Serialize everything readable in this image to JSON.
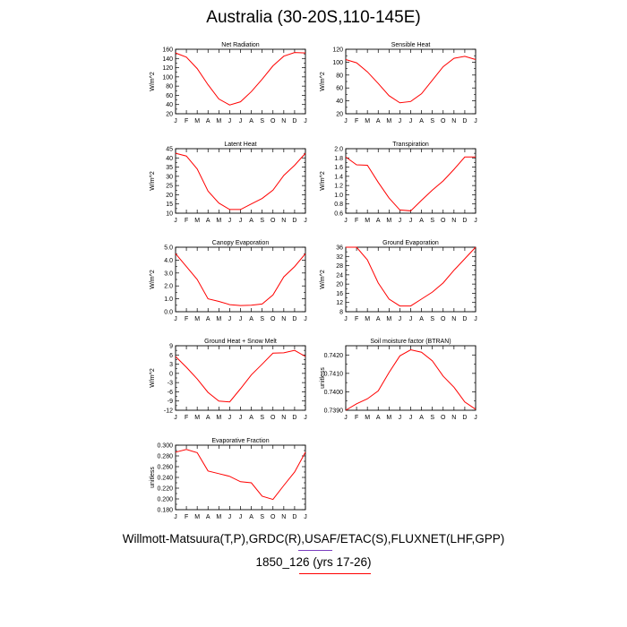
{
  "title": "Australia (30-20S,110-145E)",
  "credit": "Willmott-Matsuura(T,P),GRDC(R),USAF/ETAC(S),FLUXNET(LHF,GPP)",
  "case_label": "1850_126 (yrs 17-26)",
  "colors": {
    "line": "#ff0000",
    "credit_underline": "#7b3fbf",
    "case_underline": "#ff0000"
  },
  "chart_data": [
    {
      "type": "line",
      "title": "Net Radiation",
      "ylabel": "W/m^2",
      "x": [
        "J",
        "F",
        "M",
        "A",
        "M",
        "J",
        "J",
        "A",
        "S",
        "O",
        "N",
        "D",
        "J"
      ],
      "ylim": [
        20,
        160
      ],
      "yticks": [
        "20",
        "40",
        "60",
        "80",
        "100",
        "120",
        "140",
        "160"
      ],
      "values": [
        152,
        143,
        118,
        83,
        52,
        39,
        46,
        68,
        95,
        124,
        145,
        153,
        152
      ]
    },
    {
      "type": "line",
      "title": "Sensible Heat",
      "ylabel": "W/m^2",
      "x": [
        "J",
        "F",
        "M",
        "A",
        "M",
        "J",
        "J",
        "A",
        "S",
        "O",
        "N",
        "D",
        "J"
      ],
      "ylim": [
        20,
        120
      ],
      "yticks": [
        "20",
        "40",
        "60",
        "80",
        "100",
        "120"
      ],
      "values": [
        104,
        99,
        85,
        67,
        48,
        37,
        39,
        51,
        72,
        93,
        106,
        109,
        104
      ]
    },
    {
      "type": "line",
      "title": "Latent Heat",
      "ylabel": "W/m^2",
      "x": [
        "J",
        "F",
        "M",
        "A",
        "M",
        "J",
        "J",
        "A",
        "S",
        "O",
        "N",
        "D",
        "J"
      ],
      "ylim": [
        10,
        45
      ],
      "yticks": [
        "10",
        "15",
        "20",
        "25",
        "30",
        "35",
        "40",
        "45"
      ],
      "values": [
        42.5,
        41,
        34,
        22,
        15.5,
        12,
        12,
        15,
        18,
        22.5,
        30.5,
        36,
        42.5
      ]
    },
    {
      "type": "line",
      "title": "Transpiration",
      "ylabel": "W/m^2",
      "x": [
        "J",
        "F",
        "M",
        "A",
        "M",
        "J",
        "J",
        "A",
        "S",
        "O",
        "N",
        "D",
        "J"
      ],
      "ylim": [
        0.6,
        2.0
      ],
      "yticks": [
        "0.6",
        "0.8",
        "1.0",
        "1.2",
        "1.4",
        "1.6",
        "1.8",
        "2.0"
      ],
      "values": [
        1.82,
        1.65,
        1.64,
        1.27,
        0.93,
        0.67,
        0.65,
        0.88,
        1.1,
        1.3,
        1.55,
        1.82,
        1.82
      ]
    },
    {
      "type": "line",
      "title": "Canopy Evaporation",
      "ylabel": "W/m^2",
      "x": [
        "J",
        "F",
        "M",
        "A",
        "M",
        "J",
        "J",
        "A",
        "S",
        "O",
        "N",
        "D",
        "J"
      ],
      "ylim": [
        0.0,
        5.0
      ],
      "yticks": [
        "0.0",
        "1.0",
        "2.0",
        "3.0",
        "4.0",
        "5.0"
      ],
      "values": [
        4.5,
        3.5,
        2.5,
        1.0,
        0.8,
        0.55,
        0.48,
        0.5,
        0.6,
        1.3,
        2.7,
        3.5,
        4.5
      ]
    },
    {
      "type": "line",
      "title": "Ground Evaporation",
      "ylabel": "W/m^2",
      "x": [
        "J",
        "F",
        "M",
        "A",
        "M",
        "J",
        "J",
        "A",
        "S",
        "O",
        "N",
        "D",
        "J"
      ],
      "ylim": [
        8,
        36
      ],
      "yticks": [
        "8",
        "12",
        "16",
        "20",
        "24",
        "28",
        "32",
        "36"
      ],
      "values": [
        36,
        36,
        30.5,
        20.5,
        13.5,
        10.5,
        10.5,
        13.5,
        16.5,
        20.5,
        26,
        31,
        36
      ]
    },
    {
      "type": "line",
      "title": "Ground Heat + Snow Melt",
      "ylabel": "W/m^2",
      "x": [
        "J",
        "F",
        "M",
        "A",
        "M",
        "J",
        "J",
        "A",
        "S",
        "O",
        "N",
        "D",
        "J"
      ],
      "ylim": [
        -12,
        9
      ],
      "yticks": [
        "-12",
        "-9",
        "-6",
        "-3",
        "0",
        "3",
        "6",
        "9"
      ],
      "values": [
        5.5,
        2,
        -1.8,
        -6.2,
        -9,
        -9.3,
        -5,
        -0.5,
        3,
        6.6,
        6.7,
        7.5,
        5.5
      ]
    },
    {
      "type": "line",
      "title": "Soil moisture factor (BTRAN)",
      "ylabel": "unitless",
      "x": [
        "J",
        "F",
        "M",
        "A",
        "M",
        "J",
        "J",
        "A",
        "S",
        "O",
        "N",
        "D",
        "J"
      ],
      "ylim": [
        0.739,
        0.7425
      ],
      "yticks": [
        "0.7390",
        "0.7400",
        "0.7410",
        "0.7420"
      ],
      "values": [
        0.739,
        0.73935,
        0.73962,
        0.74005,
        0.74105,
        0.74195,
        0.74228,
        0.74215,
        0.74168,
        0.74085,
        0.74025,
        0.73945,
        0.73905
      ]
    },
    {
      "type": "line",
      "title": "Evaporative Fraction",
      "ylabel": "unitless",
      "x": [
        "J",
        "F",
        "M",
        "A",
        "M",
        "J",
        "J",
        "A",
        "S",
        "O",
        "N",
        "D",
        "J"
      ],
      "ylim": [
        0.18,
        0.3
      ],
      "yticks": [
        "0.180",
        "0.200",
        "0.220",
        "0.240",
        "0.260",
        "0.280",
        "0.300"
      ],
      "values": [
        0.287,
        0.292,
        0.286,
        0.252,
        0.247,
        0.242,
        0.232,
        0.23,
        0.205,
        0.199,
        0.225,
        0.25,
        0.287
      ]
    }
  ]
}
